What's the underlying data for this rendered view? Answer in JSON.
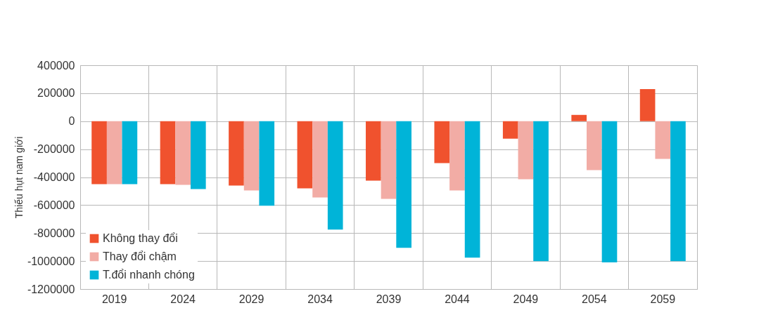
{
  "chart_data": {
    "type": "bar",
    "ylabel": "Thiếu hụt nam giới",
    "categories": [
      "2019",
      "2024",
      "2029",
      "2034",
      "2039",
      "2044",
      "2049",
      "2054",
      "2059"
    ],
    "series": [
      {
        "name": "Không thay đổi",
        "color": "#f0522e",
        "values": [
          -450000,
          -450000,
          -460000,
          -480000,
          -425000,
          -300000,
          -125000,
          45000,
          230000
        ]
      },
      {
        "name": "Thay đổi chậm",
        "color": "#f2aca5",
        "values": [
          -450000,
          -455000,
          -495000,
          -545000,
          -555000,
          -495000,
          -415000,
          -350000,
          -270000
        ]
      },
      {
        "name": "T.đổi nhanh chóng",
        "color": "#00b4d8",
        "values": [
          -450000,
          -485000,
          -605000,
          -775000,
          -905000,
          -975000,
          -1000000,
          -1010000,
          -1000000
        ]
      }
    ],
    "ylim": [
      -1200000,
      400000
    ],
    "yticks": [
      -1200000,
      -1000000,
      -800000,
      -600000,
      -400000,
      -200000,
      0,
      200000,
      400000
    ],
    "grid": true,
    "legend": "bottom left"
  }
}
